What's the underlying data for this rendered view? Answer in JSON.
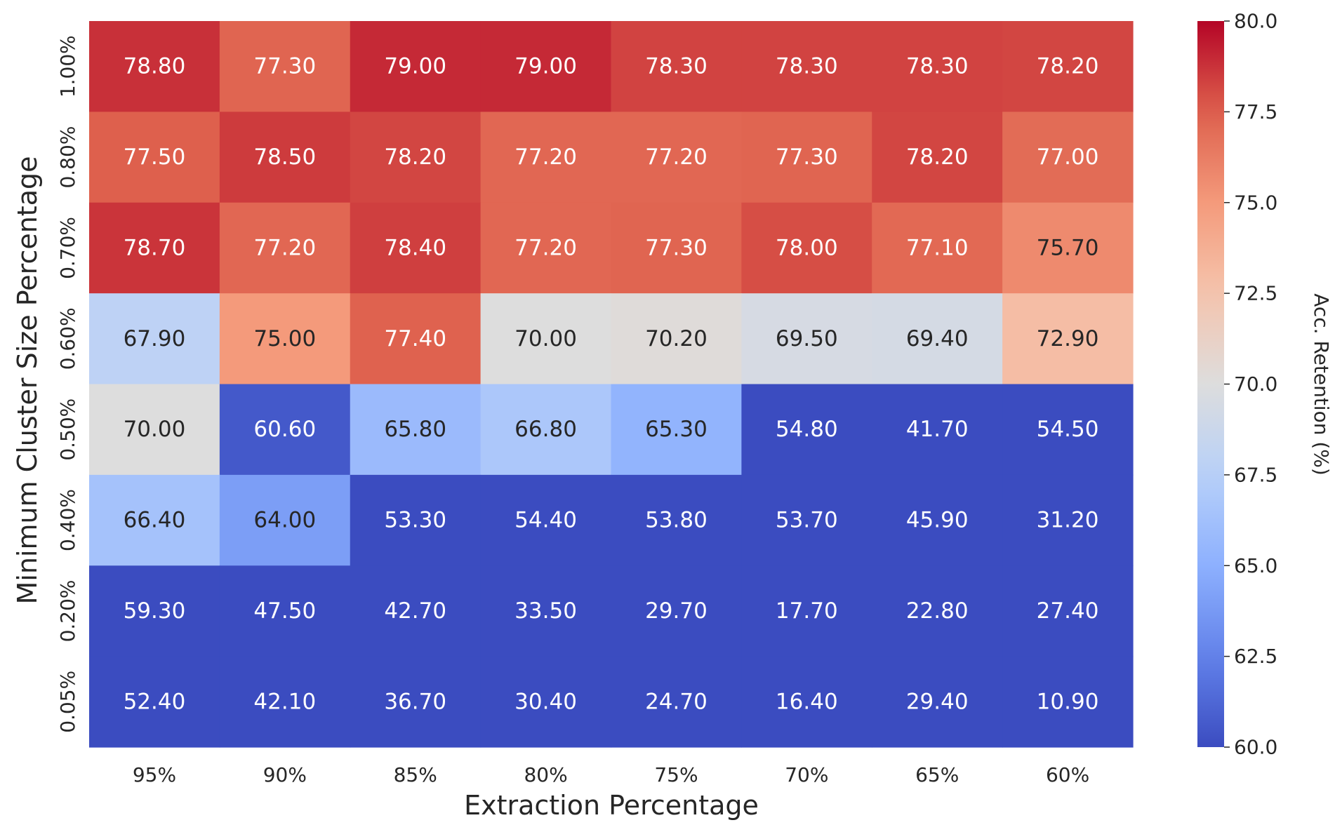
{
  "chart_data": {
    "type": "heatmap",
    "title": "",
    "xlabel": "Extraction Percentage",
    "ylabel": "Minimum Cluster Size Percentage",
    "x_categories": [
      "95%",
      "90%",
      "85%",
      "80%",
      "75%",
      "70%",
      "65%",
      "60%"
    ],
    "y_categories": [
      "1.00%",
      "0.80%",
      "0.70%",
      "0.60%",
      "0.50%",
      "0.40%",
      "0.20%",
      "0.05%"
    ],
    "values": [
      [
        78.8,
        77.3,
        79.0,
        79.0,
        78.3,
        78.3,
        78.3,
        78.2
      ],
      [
        77.5,
        78.5,
        78.2,
        77.2,
        77.2,
        77.3,
        78.2,
        77.0
      ],
      [
        78.7,
        77.2,
        78.4,
        77.2,
        77.3,
        78.0,
        77.1,
        75.7
      ],
      [
        67.9,
        75.0,
        77.4,
        70.0,
        70.2,
        69.5,
        69.4,
        72.9
      ],
      [
        70.0,
        60.6,
        65.8,
        66.8,
        65.3,
        54.8,
        41.7,
        54.5
      ],
      [
        66.4,
        64.0,
        53.3,
        54.4,
        53.8,
        53.7,
        45.9,
        31.2
      ],
      [
        59.3,
        47.5,
        42.7,
        33.5,
        29.7,
        17.7,
        22.8,
        27.4
      ],
      [
        52.4,
        42.1,
        36.7,
        30.4,
        24.7,
        16.4,
        29.4,
        10.9
      ]
    ],
    "value_labels": [
      [
        "78.80",
        "77.30",
        "79.00",
        "79.00",
        "78.30",
        "78.30",
        "78.30",
        "78.20"
      ],
      [
        "77.50",
        "78.50",
        "78.20",
        "77.20",
        "77.20",
        "77.30",
        "78.20",
        "77.00"
      ],
      [
        "78.70",
        "77.20",
        "78.40",
        "77.20",
        "77.30",
        "78.00",
        "77.10",
        "75.70"
      ],
      [
        "67.90",
        "75.00",
        "77.40",
        "70.00",
        "70.20",
        "69.50",
        "69.40",
        "72.90"
      ],
      [
        "70.00",
        "60.60",
        "65.80",
        "66.80",
        "65.30",
        "54.80",
        "41.70",
        "54.50"
      ],
      [
        "66.40",
        "64.00",
        "53.30",
        "54.40",
        "53.80",
        "53.70",
        "45.90",
        "31.20"
      ],
      [
        "59.30",
        "47.50",
        "42.70",
        "33.50",
        "29.70",
        "17.70",
        "22.80",
        "27.40"
      ],
      [
        "52.40",
        "42.10",
        "36.70",
        "30.40",
        "24.70",
        "16.40",
        "29.40",
        "10.90"
      ]
    ],
    "colorbar": {
      "label": "Acc. Retention (%)",
      "vmin": 60.0,
      "vmax": 80.0,
      "colormap": "coolwarm",
      "ticks": [
        60.0,
        62.5,
        65.0,
        67.5,
        70.0,
        72.5,
        75.0,
        77.5,
        80.0
      ],
      "tick_labels": [
        "60.0",
        "62.5",
        "65.0",
        "67.5",
        "70.0",
        "72.5",
        "75.0",
        "77.5",
        "80.0"
      ]
    },
    "grid": false,
    "legend": "colorbar-right"
  },
  "colors": {
    "text_dark": "#262626",
    "text_light": "#ffffff"
  }
}
